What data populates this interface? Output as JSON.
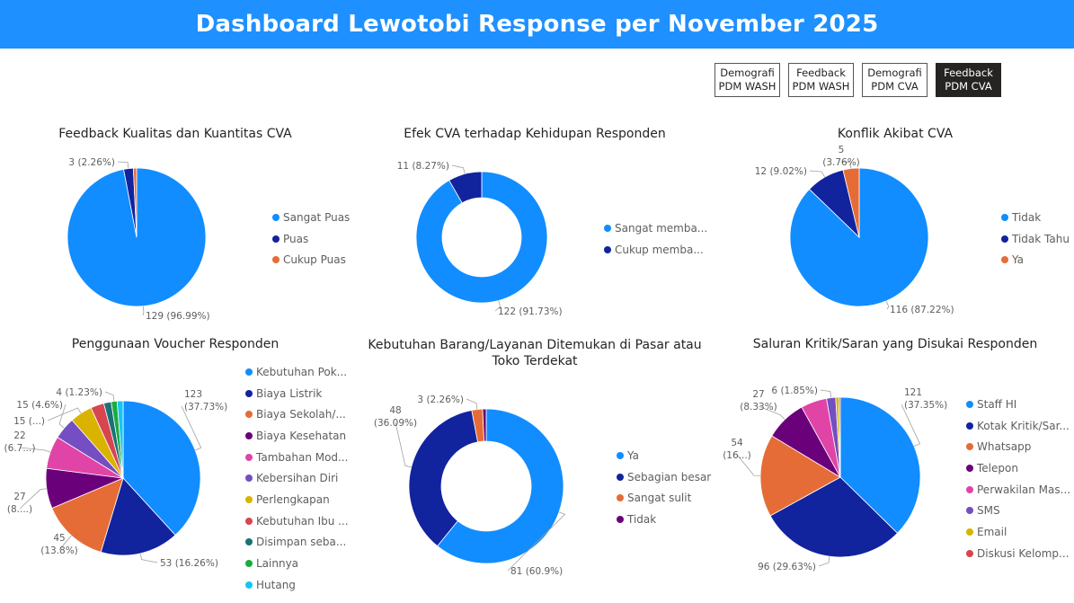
{
  "header": {
    "title": "Dashboard Lewotobi Response per November 2025"
  },
  "nav": [
    {
      "line1": "Demografi",
      "line2": "PDM WASH",
      "active": false
    },
    {
      "line1": "Feedback",
      "line2": "PDM WASH",
      "active": false
    },
    {
      "line1": "Demografi",
      "line2": "PDM CVA",
      "active": false
    },
    {
      "line1": "Feedback",
      "line2": "PDM CVA",
      "active": true
    }
  ],
  "chart_data": [
    {
      "type": "pie",
      "title": "Feedback Kualitas dan Kuantitas CVA",
      "legend_position": "right",
      "labels": [
        "Sangat Puas",
        "Puas",
        "Cukup Puas"
      ],
      "values": [
        129,
        3,
        1
      ],
      "colors": [
        "#118dff",
        "#12239e",
        "#e66c37"
      ],
      "data_labels": [
        "129 (96.99%)",
        "3 (2.26%)",
        ""
      ]
    },
    {
      "type": "pie",
      "donut": true,
      "title": "Efek CVA terhadap Kehidupan Responden",
      "legend_position": "right",
      "labels": [
        "Sangat memba...",
        "Cukup memba..."
      ],
      "values": [
        122,
        11
      ],
      "colors": [
        "#118dff",
        "#12239e"
      ],
      "data_labels": [
        "122 (91.73%)",
        "11 (8.27%)"
      ]
    },
    {
      "type": "pie",
      "title": "Konflik Akibat CVA",
      "legend_position": "right",
      "labels": [
        "Tidak",
        "Tidak Tahu",
        "Ya"
      ],
      "values": [
        116,
        12,
        5
      ],
      "colors": [
        "#118dff",
        "#12239e",
        "#e66c37"
      ],
      "data_labels": [
        "116 (87.22%)",
        "12 (9.02%)",
        "5 (3.76%)"
      ]
    },
    {
      "type": "pie",
      "title": "Penggunaan Voucher Responden",
      "legend_position": "right",
      "labels": [
        "Kebutuhan Pok...",
        "Biaya Listrik",
        "Biaya Sekolah/...",
        "Biaya Kesehatan",
        "Tambahan Mod...",
        "Kebersihan Diri",
        "Perlengkapan",
        "Kebutuhan Ibu ...",
        "Disimpan seba...",
        "Lainnya",
        "Hutang"
      ],
      "values": [
        123,
        53,
        45,
        27,
        22,
        15,
        15,
        9,
        5,
        4,
        4
      ],
      "colors": [
        "#118dff",
        "#12239e",
        "#e66c37",
        "#6b007b",
        "#e044a7",
        "#744ec2",
        "#d9b300",
        "#d64550",
        "#197278",
        "#1aab40",
        "#15c6f4"
      ],
      "data_labels": [
        "123 (37.73%)",
        "53 (16.26%)",
        "45 (13.8%)",
        "27 (8....)",
        "22 (6.7...)",
        "15 (4.6%)",
        "15 (...)",
        "",
        "",
        "4 (1.23%)",
        ""
      ]
    },
    {
      "type": "pie",
      "donut": true,
      "title": "Kebutuhan Barang/Layanan Ditemukan di Pasar atau Toko Terdekat",
      "legend_position": "right",
      "labels": [
        "Ya",
        "Sebagian besar",
        "Sangat sulit",
        "Tidak"
      ],
      "values": [
        81,
        48,
        3,
        1
      ],
      "colors": [
        "#118dff",
        "#12239e",
        "#e66c37",
        "#6b007b"
      ],
      "data_labels": [
        "81 (60.9%)",
        "48 (36.09%)",
        "3 (2.26%)",
        ""
      ]
    },
    {
      "type": "pie",
      "title": "Saluran Kritik/Saran yang Disukai Responden",
      "legend_position": "right",
      "labels": [
        "Staff HI",
        "Kotak Kritik/Sar...",
        "Whatsapp",
        "Telepon",
        "Perwakilan Mas...",
        "SMS",
        "Email",
        "Diskusi Kelomp..."
      ],
      "values": [
        121,
        96,
        54,
        27,
        17,
        6,
        2,
        1
      ],
      "colors": [
        "#118dff",
        "#12239e",
        "#e66c37",
        "#6b007b",
        "#e044a7",
        "#744ec2",
        "#d9b300",
        "#d64550"
      ],
      "data_labels": [
        "121 (37.35%)",
        "96 (29.63%)",
        "54 (16...)",
        "27 (8.33%)",
        "",
        "6 (1.85%)",
        "",
        ""
      ]
    }
  ]
}
